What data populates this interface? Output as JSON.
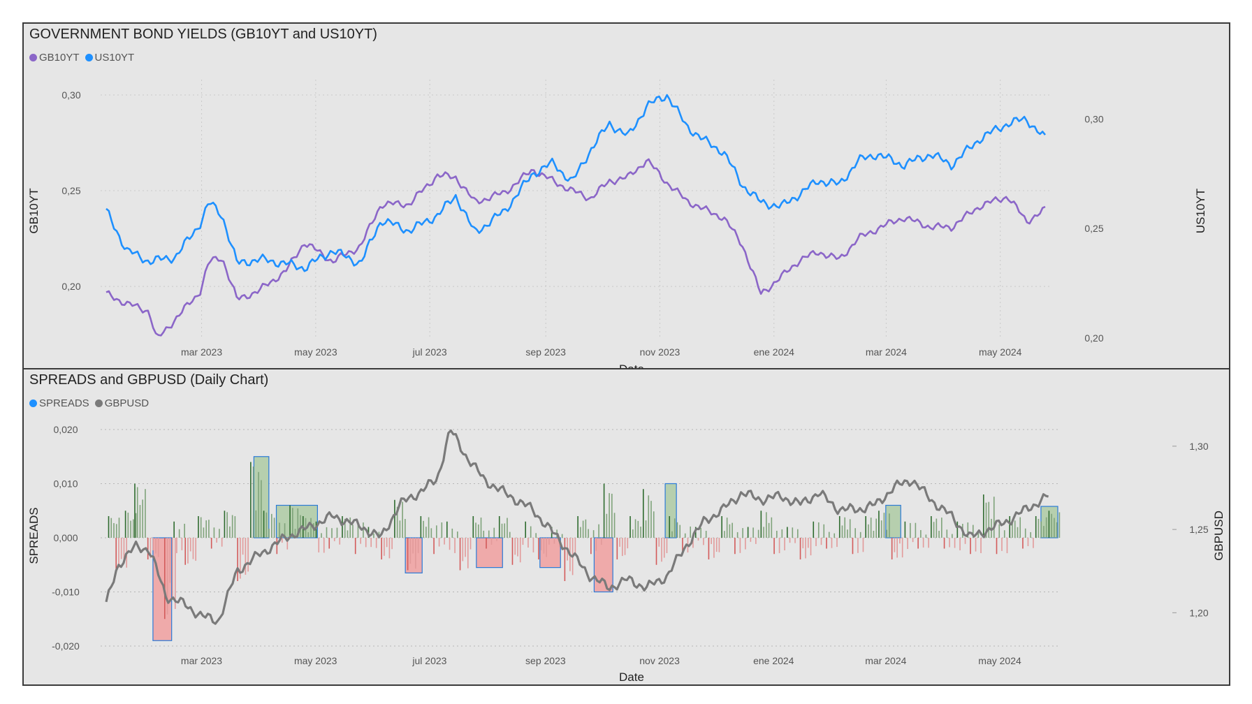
{
  "colors": {
    "gb10yt": "#8b66c8",
    "us10yt": "#1e90ff",
    "gbpusd": "#7a7a7a",
    "spread_pos": "#2e6b2e",
    "spread_neg": "#d35a5a",
    "box_pos_fill": "#b6cfae",
    "box_neg_fill": "#efaaaa",
    "box_stroke": "#2a7ad8"
  },
  "chart_data": [
    {
      "type": "line",
      "title": "GOVERNMENT BOND YIELDS (GB10YT and US10YT)",
      "xlabel": "Date",
      "ylabel": "GB10YT",
      "y2label": "US10YT",
      "x_ticks": [
        "mar 2023",
        "may 2023",
        "jul 2023",
        "sep 2023",
        "nov 2023",
        "ene 2024",
        "mar 2024",
        "may 2024"
      ],
      "y_ticks": [
        "0,30",
        "0,25",
        "0,20"
      ],
      "y2_ticks": [
        "0,30",
        "0,25",
        "0,20"
      ],
      "ylim": [
        0.165,
        0.3
      ],
      "y2lim": [
        0.2,
        0.318
      ],
      "legend": "top-left",
      "grid": true,
      "series": [
        {
          "name": "GB10YT",
          "axis": "left",
          "x": [
            "2023-01-09",
            "2023-01-20",
            "2023-02-01",
            "2023-02-05",
            "2023-02-15",
            "2023-02-28",
            "2023-03-05",
            "2023-03-12",
            "2023-03-20",
            "2023-04-01",
            "2023-04-15",
            "2023-04-25",
            "2023-05-10",
            "2023-05-25",
            "2023-06-05",
            "2023-06-20",
            "2023-07-05",
            "2023-07-15",
            "2023-07-25",
            "2023-08-10",
            "2023-08-25",
            "2023-09-05",
            "2023-09-15",
            "2023-09-25",
            "2023-10-05",
            "2023-10-15",
            "2023-10-25",
            "2023-11-05",
            "2023-11-15",
            "2023-11-25",
            "2023-12-05",
            "2023-12-15",
            "2023-12-25",
            "2024-01-05",
            "2024-01-15",
            "2024-01-25",
            "2024-02-05",
            "2024-02-15",
            "2024-02-25",
            "2024-03-10",
            "2024-03-25",
            "2024-04-05",
            "2024-04-20",
            "2024-05-05",
            "2024-05-15",
            "2024-05-25"
          ],
          "values": [
            0.196,
            0.191,
            0.187,
            0.172,
            0.183,
            0.197,
            0.213,
            0.215,
            0.193,
            0.198,
            0.208,
            0.223,
            0.213,
            0.221,
            0.243,
            0.243,
            0.258,
            0.257,
            0.244,
            0.249,
            0.261,
            0.255,
            0.25,
            0.246,
            0.255,
            0.257,
            0.266,
            0.254,
            0.245,
            0.24,
            0.236,
            0.222,
            0.196,
            0.205,
            0.214,
            0.218,
            0.214,
            0.225,
            0.23,
            0.236,
            0.231,
            0.231,
            0.242,
            0.247,
            0.234,
            0.24
          ]
        },
        {
          "name": "US10YT",
          "axis": "right",
          "x": [
            "2023-01-09",
            "2023-01-20",
            "2023-02-01",
            "2023-02-15",
            "2023-02-28",
            "2023-03-05",
            "2023-03-12",
            "2023-03-20",
            "2023-04-01",
            "2023-04-15",
            "2023-04-25",
            "2023-05-10",
            "2023-05-25",
            "2023-06-05",
            "2023-06-20",
            "2023-07-05",
            "2023-07-15",
            "2023-07-25",
            "2023-08-10",
            "2023-08-25",
            "2023-09-05",
            "2023-09-15",
            "2023-09-25",
            "2023-10-05",
            "2023-10-15",
            "2023-10-25",
            "2023-11-05",
            "2023-11-15",
            "2023-11-25",
            "2023-12-05",
            "2023-12-15",
            "2023-12-25",
            "2024-01-05",
            "2024-01-15",
            "2024-01-25",
            "2024-02-05",
            "2024-02-15",
            "2024-02-25",
            "2024-03-10",
            "2024-03-25",
            "2024-04-05",
            "2024-04-20",
            "2024-05-05",
            "2024-05-15",
            "2024-05-25"
          ],
          "values": [
            0.258,
            0.24,
            0.235,
            0.237,
            0.252,
            0.262,
            0.256,
            0.234,
            0.236,
            0.234,
            0.232,
            0.24,
            0.234,
            0.254,
            0.249,
            0.256,
            0.265,
            0.248,
            0.258,
            0.275,
            0.28,
            0.271,
            0.286,
            0.298,
            0.292,
            0.306,
            0.311,
            0.297,
            0.29,
            0.285,
            0.27,
            0.262,
            0.26,
            0.266,
            0.272,
            0.27,
            0.281,
            0.284,
            0.279,
            0.284,
            0.279,
            0.291,
            0.298,
            0.3,
            0.291
          ]
        }
      ]
    },
    {
      "type": "bar+line",
      "title": "SPREADS and GBPUSD (Daily Chart)",
      "xlabel": "Date",
      "ylabel": "SPREADS",
      "y2label": "GBPUSD",
      "x_ticks": [
        "mar 2023",
        "may 2023",
        "jul 2023",
        "sep 2023",
        "nov 2023",
        "ene 2024",
        "mar 2024",
        "may 2024"
      ],
      "y_ticks": [
        "0,020",
        "0,010",
        "0,000",
        "-0,010",
        "-0,020"
      ],
      "y2_ticks": [
        "1,30",
        "1,25",
        "1,20"
      ],
      "ylim": [
        -0.02,
        0.02
      ],
      "y2lim": [
        1.18,
        1.31
      ],
      "legend": "top-left",
      "grid": true,
      "series": [
        {
          "name": "SPREADS",
          "type": "bar",
          "x": [
            "2023-01-10",
            "2023-01-14",
            "2023-01-19",
            "2023-01-24",
            "2023-01-31",
            "2023-02-09",
            "2023-02-14",
            "2023-02-20",
            "2023-02-27",
            "2023-03-06",
            "2023-03-13",
            "2023-03-20",
            "2023-03-27",
            "2023-04-03",
            "2023-04-10",
            "2023-04-17",
            "2023-04-24",
            "2023-05-01",
            "2023-05-08",
            "2023-05-15",
            "2023-05-22",
            "2023-05-29",
            "2023-06-05",
            "2023-06-12",
            "2023-06-19",
            "2023-06-26",
            "2023-07-03",
            "2023-07-10",
            "2023-07-17",
            "2023-07-24",
            "2023-07-31",
            "2023-08-07",
            "2023-08-14",
            "2023-08-21",
            "2023-08-28",
            "2023-09-04",
            "2023-09-11",
            "2023-09-18",
            "2023-09-25",
            "2023-10-02",
            "2023-10-09",
            "2023-10-16",
            "2023-10-23",
            "2023-10-30",
            "2023-11-06",
            "2023-11-13",
            "2023-11-20",
            "2023-11-27",
            "2023-12-04",
            "2023-12-11",
            "2023-12-18",
            "2023-12-25",
            "2024-01-01",
            "2024-01-08",
            "2024-01-15",
            "2024-01-22",
            "2024-01-29",
            "2024-02-05",
            "2024-02-12",
            "2024-02-19",
            "2024-02-26",
            "2024-03-04",
            "2024-03-11",
            "2024-03-18",
            "2024-03-25",
            "2024-04-01",
            "2024-04-08",
            "2024-04-15",
            "2024-04-22",
            "2024-04-29",
            "2024-05-06",
            "2024-05-13",
            "2024-05-20",
            "2024-05-27"
          ],
          "values": [
            0.004,
            -0.006,
            0.005,
            0.01,
            -0.004,
            -0.015,
            0.003,
            -0.005,
            0.004,
            -0.002,
            0.005,
            -0.008,
            0.014,
            0.005,
            -0.003,
            0.006,
            0.004,
            0.003,
            -0.002,
            0.004,
            -0.003,
            0.002,
            -0.004,
            0.007,
            -0.006,
            0.004,
            -0.003,
            0.003,
            -0.006,
            0.004,
            -0.002,
            0.004,
            -0.005,
            0.003,
            -0.004,
            0.002,
            -0.008,
            0.004,
            -0.003,
            0.01,
            -0.004,
            0.004,
            0.009,
            -0.005,
            0.004,
            -0.003,
            0.002,
            -0.004,
            0.004,
            -0.003,
            0.002,
            0.005,
            -0.003,
            0.002,
            -0.004,
            0.003,
            -0.002,
            0.004,
            -0.003,
            0.004,
            0.005,
            -0.004,
            0.003,
            -0.002,
            0.004,
            -0.002,
            0.003,
            -0.003,
            0.008,
            -0.003,
            0.004,
            -0.002,
            0.004,
            0.005
          ]
        },
        {
          "name": "GBPUSD",
          "type": "line",
          "x": [
            "2023-01-09",
            "2023-01-15",
            "2023-01-25",
            "2023-02-01",
            "2023-02-10",
            "2023-02-20",
            "2023-03-01",
            "2023-03-10",
            "2023-03-20",
            "2023-04-01",
            "2023-04-15",
            "2023-04-25",
            "2023-05-10",
            "2023-05-25",
            "2023-06-05",
            "2023-06-15",
            "2023-06-25",
            "2023-07-05",
            "2023-07-12",
            "2023-07-20",
            "2023-07-30",
            "2023-08-10",
            "2023-08-25",
            "2023-09-05",
            "2023-09-15",
            "2023-09-25",
            "2023-10-05",
            "2023-10-15",
            "2023-10-25",
            "2023-11-05",
            "2023-11-15",
            "2023-11-25",
            "2023-12-05",
            "2023-12-15",
            "2023-12-25",
            "2024-01-05",
            "2024-01-15",
            "2024-01-25",
            "2024-02-05",
            "2024-02-15",
            "2024-02-25",
            "2024-03-05",
            "2024-03-15",
            "2024-03-25",
            "2024-04-05",
            "2024-04-15",
            "2024-04-25",
            "2024-05-05",
            "2024-05-15",
            "2024-05-27"
          ],
          "values": [
            1.205,
            1.228,
            1.24,
            1.238,
            1.21,
            1.205,
            1.198,
            1.195,
            1.225,
            1.235,
            1.245,
            1.25,
            1.258,
            1.252,
            1.245,
            1.265,
            1.272,
            1.28,
            1.31,
            1.295,
            1.28,
            1.272,
            1.262,
            1.248,
            1.235,
            1.222,
            1.215,
            1.22,
            1.215,
            1.222,
            1.24,
            1.255,
            1.262,
            1.272,
            1.268,
            1.27,
            1.265,
            1.272,
            1.262,
            1.262,
            1.265,
            1.275,
            1.28,
            1.268,
            1.258,
            1.245,
            1.25,
            1.255,
            1.262,
            1.27
          ]
        }
      ]
    }
  ]
}
